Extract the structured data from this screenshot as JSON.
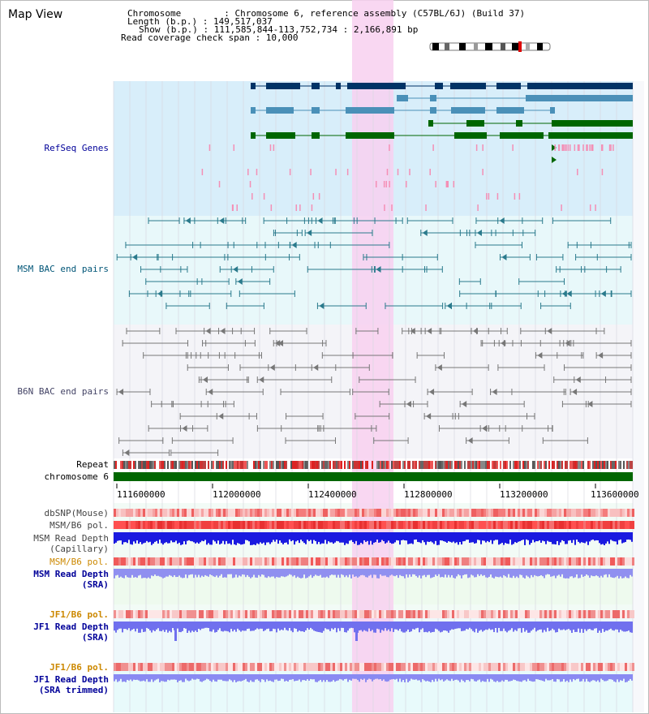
{
  "title": "Map View",
  "header": {
    "chromosome": "Chromosome        : Chromosome 6, reference assembly (C57BL/6J) (Build 37)",
    "length": "Length (b.p.) : 149,517,037",
    "show": "Show (b.p.) : 111,585,844-113,752,734 : 2,166,891 bp",
    "coverage": "Read coverage check span : 10,000"
  },
  "tracks": {
    "refseq": "RefSeq Genes",
    "msm_bac": "MSM BAC end pairs",
    "b6n_bac": "B6N BAC end pairs",
    "repeat": "Repeat",
    "chromosome": "chromosome 6",
    "dbsnp": "dbSNP(Mouse)",
    "msm_b6_pol": "MSM/B6 pol.",
    "msm_depth_cap_1": "MSM Read Depth",
    "msm_depth_cap_2": "(Capillary)",
    "msm_b6_pol2": "MSM/B6 pol.",
    "msm_depth_sra_1": "MSM Read Depth",
    "msm_depth_sra_2": "(SRA)",
    "jf1_b6_pol": "JF1/B6 pol.",
    "jf1_depth_1": "JF1 Read Depth",
    "jf1_depth_2": "(SRA)",
    "jf1_b6_pol2": "JF1/B6 pol.",
    "jf1_trim_1": "JF1 Read Depth",
    "jf1_trim_2": "(SRA trimmed)"
  },
  "ruler": {
    "ticks": [
      "111600000",
      "112000000",
      "112400000",
      "112800000",
      "113200000",
      "113600000"
    ]
  },
  "colors": {
    "refseq_bg": "#d8eefa",
    "msm_bg": "#e8f8fa",
    "b6n_bg": "#f4f4f8",
    "highlight": "#f8d0f0",
    "gene_dark": "#003366",
    "gene_mid": "#4a90b8",
    "gene_green": "#006600",
    "label_blue": "#000099",
    "label_teal": "#005577",
    "label_gray": "#444466",
    "label_orange": "#cc8800"
  }
}
